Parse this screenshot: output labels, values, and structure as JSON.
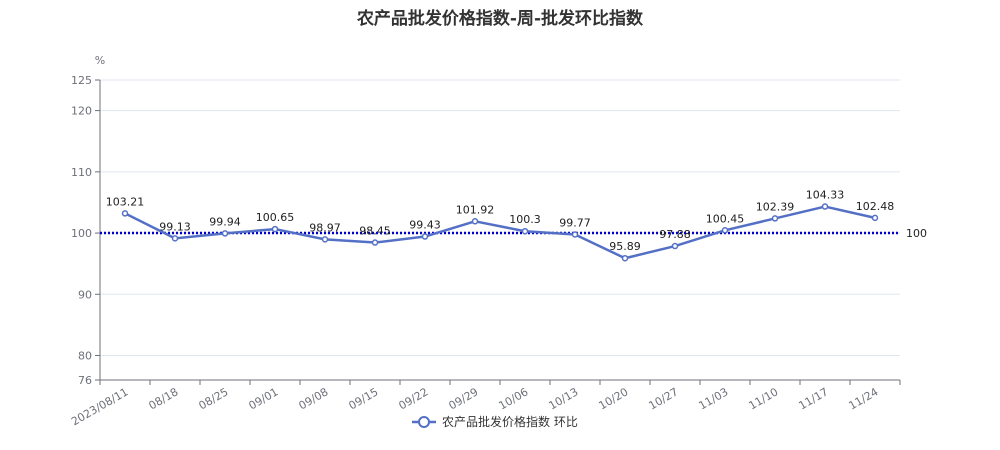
{
  "chart_data": {
    "type": "line",
    "title": "农产品批发价格指数-周-批发环比指数",
    "ylabel": "%",
    "xlabel": "",
    "ylim": [
      76,
      125
    ],
    "yticks": [
      76,
      80,
      90,
      100,
      110,
      120,
      125
    ],
    "categories": [
      "2023/08/11",
      "08/18",
      "08/25",
      "09/01",
      "09/08",
      "09/15",
      "09/22",
      "09/29",
      "10/06",
      "10/13",
      "10/20",
      "10/27",
      "11/03",
      "11/10",
      "11/17",
      "11/24"
    ],
    "series": [
      {
        "name": "农产品批发价格指数 环比",
        "values": [
          103.21,
          99.13,
          99.94,
          100.65,
          98.97,
          98.45,
          99.43,
          101.92,
          100.3,
          99.77,
          95.89,
          97.88,
          100.45,
          102.39,
          104.33,
          102.48
        ],
        "value_labels": [
          "103.21",
          "99.13",
          "99.94",
          "100.65",
          "98.97",
          "98.45",
          "99.43",
          "101.92",
          "100.3",
          "99.77",
          "95.89",
          "97.88",
          "100.45",
          "102.39",
          "104.33",
          "102.48"
        ],
        "color": "#5470c6"
      }
    ],
    "reference_line": {
      "value": 100,
      "label": "100",
      "color": "#0000cc"
    },
    "grid": true,
    "legend_position": "bottom"
  }
}
